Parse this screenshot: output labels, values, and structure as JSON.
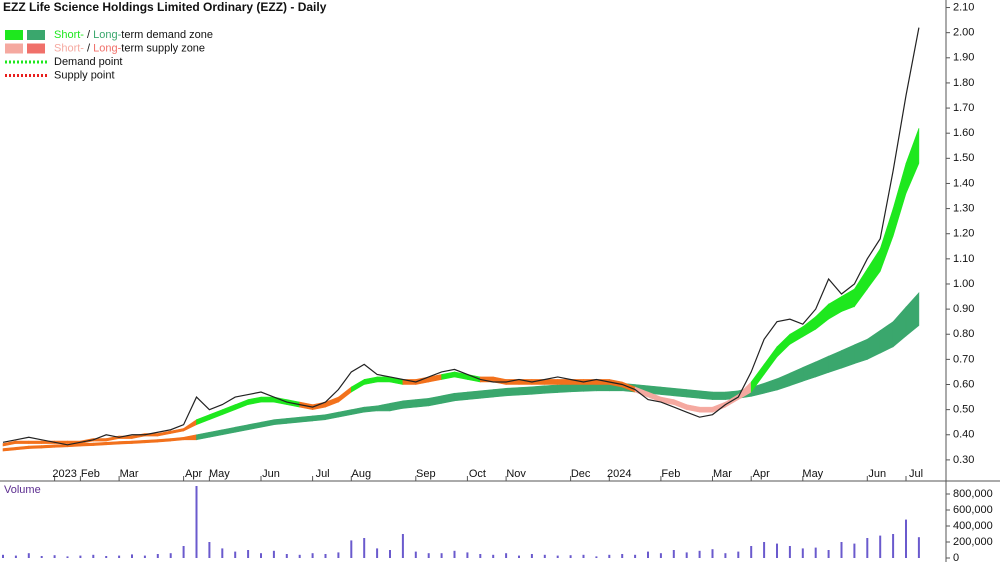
{
  "chart_data": [
    {
      "type": "line",
      "title": "EZZ Life Science Holdings Limited Ordinary (EZZ) - Daily",
      "categories": [
        null,
        null,
        null,
        null,
        "2023",
        null,
        "Feb",
        null,
        null,
        "Mar",
        null,
        null,
        null,
        null,
        "Apr",
        null,
        "May",
        null,
        null,
        null,
        "Jun",
        null,
        null,
        null,
        "Jul",
        null,
        null,
        "Aug",
        null,
        null,
        null,
        null,
        "Sep",
        null,
        null,
        null,
        "Oct",
        null,
        null,
        "Nov",
        null,
        null,
        null,
        null,
        "Dec",
        null,
        null,
        "2024",
        null,
        null,
        null,
        "Feb",
        null,
        null,
        null,
        "Mar",
        null,
        null,
        "Apr",
        null,
        null,
        null,
        "May",
        null,
        null,
        null,
        null,
        "Jun",
        null,
        null,
        "Jul",
        null
      ],
      "series": [
        {
          "color": "#222222",
          "values": [
            0.37,
            0.38,
            0.39,
            0.38,
            0.37,
            0.36,
            0.37,
            0.38,
            0.4,
            0.39,
            0.4,
            0.4,
            0.41,
            0.42,
            0.44,
            0.55,
            0.5,
            0.52,
            0.55,
            0.56,
            0.57,
            0.55,
            0.53,
            0.52,
            0.51,
            0.53,
            0.58,
            0.65,
            0.68,
            0.64,
            0.63,
            0.62,
            0.61,
            0.63,
            0.65,
            0.66,
            0.64,
            0.62,
            0.61,
            0.61,
            0.62,
            0.61,
            0.62,
            0.63,
            0.62,
            0.61,
            0.62,
            0.61,
            0.6,
            0.58,
            0.54,
            0.53,
            0.51,
            0.49,
            0.47,
            0.48,
            0.52,
            0.55,
            0.65,
            0.78,
            0.85,
            0.86,
            0.84,
            0.9,
            1.02,
            0.96,
            1.0,
            1.1,
            1.18,
            1.45,
            1.75,
            2.02
          ]
        }
      ],
      "bands": [
        {
          "lower": [
            0.335,
            0.34,
            0.345,
            0.347,
            0.35,
            0.352,
            0.355,
            0.357,
            0.36,
            0.363,
            0.365,
            0.368,
            0.371,
            0.375,
            0.38,
            0.38,
            0.39,
            0.4,
            0.41,
            0.42,
            0.43,
            0.44,
            0.445,
            0.45,
            0.455,
            0.46,
            0.47,
            0.48,
            0.49,
            0.495,
            0.495,
            0.505,
            0.51,
            0.515,
            0.525,
            0.535,
            0.54,
            0.545,
            0.55,
            0.555,
            0.558,
            0.561,
            0.565,
            0.568,
            0.571,
            0.573,
            0.575,
            0.575,
            0.575,
            0.57,
            0.565,
            0.56,
            0.555,
            0.55,
            0.545,
            0.54,
            0.54,
            0.545,
            0.553,
            0.565,
            0.578,
            0.595,
            0.613,
            0.63,
            0.648,
            0.665,
            0.683,
            0.7,
            0.725,
            0.75,
            0.793,
            0.835
          ],
          "upper": [
            0.345,
            0.35,
            0.355,
            0.357,
            0.36,
            0.362,
            0.365,
            0.367,
            0.37,
            0.373,
            0.375,
            0.378,
            0.381,
            0.385,
            0.39,
            0.4,
            0.41,
            0.42,
            0.43,
            0.44,
            0.45,
            0.46,
            0.465,
            0.47,
            0.475,
            0.48,
            0.49,
            0.5,
            0.51,
            0.515,
            0.525,
            0.535,
            0.54,
            0.545,
            0.555,
            0.565,
            0.57,
            0.575,
            0.58,
            0.585,
            0.588,
            0.591,
            0.595,
            0.598,
            0.601,
            0.603,
            0.605,
            0.605,
            0.605,
            0.6,
            0.595,
            0.59,
            0.585,
            0.58,
            0.575,
            0.57,
            0.57,
            0.575,
            0.588,
            0.605,
            0.623,
            0.645,
            0.668,
            0.69,
            0.713,
            0.735,
            0.758,
            0.78,
            0.815,
            0.85,
            0.908,
            0.965
          ],
          "colors": [
            "#f2711c",
            "#f2711c",
            "#f2711c",
            "#f2711c",
            "#f2711c",
            "#f2711c",
            "#f2711c",
            "#f2711c",
            "#f2711c",
            "#f2711c",
            "#f2711c",
            "#f2711c",
            "#f2711c",
            "#f2711c",
            "#f2711c",
            "#3aa76d",
            "#3aa76d",
            "#3aa76d",
            "#3aa76d",
            "#3aa76d",
            "#3aa76d",
            "#3aa76d",
            "#3aa76d",
            "#3aa76d",
            "#3aa76d",
            "#3aa76d",
            "#3aa76d",
            "#3aa76d",
            "#3aa76d",
            "#3aa76d",
            "#3aa76d",
            "#3aa76d",
            "#3aa76d",
            "#3aa76d",
            "#3aa76d",
            "#3aa76d",
            "#3aa76d",
            "#3aa76d",
            "#3aa76d",
            "#3aa76d",
            "#3aa76d",
            "#3aa76d",
            "#3aa76d",
            "#3aa76d",
            "#3aa76d",
            "#3aa76d",
            "#3aa76d",
            "#3aa76d",
            "#3aa76d",
            "#3aa76d",
            "#3aa76d",
            "#3aa76d",
            "#3aa76d",
            "#3aa76d",
            "#3aa76d",
            "#3aa76d",
            "#3aa76d",
            "#3aa76d",
            "#3aa76d",
            "#3aa76d",
            "#3aa76d",
            "#3aa76d",
            "#3aa76d",
            "#3aa76d",
            "#3aa76d",
            "#3aa76d",
            "#3aa76d",
            "#3aa76d",
            "#3aa76d",
            "#3aa76d",
            "#3aa76d",
            "#3aa76d"
          ]
        },
        {
          "lower": [
            0.355,
            0.365,
            0.365,
            0.365,
            0.365,
            0.365,
            0.365,
            0.375,
            0.375,
            0.385,
            0.385,
            0.395,
            0.395,
            0.405,
            0.415,
            0.44,
            0.46,
            0.48,
            0.5,
            0.52,
            0.53,
            0.53,
            0.52,
            0.51,
            0.5,
            0.51,
            0.53,
            0.57,
            0.6,
            0.61,
            0.61,
            0.6,
            0.6,
            0.61,
            0.62,
            0.63,
            0.62,
            0.61,
            0.61,
            0.6,
            0.6,
            0.6,
            0.6,
            0.6,
            0.6,
            0.6,
            0.6,
            0.6,
            0.59,
            0.57,
            0.55,
            0.53,
            0.52,
            0.5,
            0.49,
            0.49,
            0.51,
            0.54,
            0.57,
            0.64,
            0.71,
            0.76,
            0.79,
            0.82,
            0.86,
            0.89,
            0.91,
            0.98,
            1.05,
            1.19,
            1.36,
            1.48
          ],
          "upper": [
            0.365,
            0.375,
            0.375,
            0.375,
            0.375,
            0.375,
            0.375,
            0.385,
            0.385,
            0.395,
            0.395,
            0.405,
            0.405,
            0.415,
            0.425,
            0.46,
            0.48,
            0.5,
            0.52,
            0.54,
            0.55,
            0.55,
            0.54,
            0.53,
            0.52,
            0.53,
            0.55,
            0.59,
            0.62,
            0.63,
            0.63,
            0.62,
            0.62,
            0.63,
            0.64,
            0.65,
            0.64,
            0.63,
            0.63,
            0.62,
            0.62,
            0.62,
            0.62,
            0.62,
            0.62,
            0.62,
            0.62,
            0.62,
            0.61,
            0.59,
            0.57,
            0.55,
            0.54,
            0.52,
            0.51,
            0.51,
            0.53,
            0.56,
            0.61,
            0.68,
            0.75,
            0.8,
            0.83,
            0.87,
            0.92,
            0.95,
            0.98,
            1.06,
            1.14,
            1.3,
            1.48,
            1.62
          ],
          "colors": [
            "#f2711c",
            "#f2711c",
            "#f2711c",
            "#f2711c",
            "#f2711c",
            "#f2711c",
            "#f2711c",
            "#f2711c",
            "#f2711c",
            "#f2711c",
            "#f2711c",
            "#f2711c",
            "#f2711c",
            "#f2711c",
            "#f2711c",
            "#1ee81e",
            "#1ee81e",
            "#1ee81e",
            "#1ee81e",
            "#1ee81e",
            "#1ee81e",
            "#1ee81e",
            "#1ee81e",
            "#f2711c",
            "#f2711c",
            "#f2711c",
            "#f2711c",
            "#1ee81e",
            "#1ee81e",
            "#1ee81e",
            "#1ee81e",
            "#f2711c",
            "#f2711c",
            "#f2711c",
            "#1ee81e",
            "#1ee81e",
            "#1ee81e",
            "#f2711c",
            "#f2711c",
            "#f2711c",
            "#f2711c",
            "#f2711c",
            "#f2711c",
            "#f2711c",
            "#f2711c",
            "#f2711c",
            "#f2711c",
            "#f2711c",
            "#f2711c",
            "#f5a9a0",
            "#f5a9a0",
            "#f5a9a0",
            "#f5a9a0",
            "#f5a9a0",
            "#f5a9a0",
            "#f5a9a0",
            "#f5a9a0",
            "#f5a9a0",
            "#1ee81e",
            "#1ee81e",
            "#1ee81e",
            "#1ee81e",
            "#1ee81e",
            "#1ee81e",
            "#1ee81e",
            "#1ee81e",
            "#1ee81e",
            "#1ee81e",
            "#1ee81e",
            "#1ee81e",
            "#1ee81e",
            "#1ee81e"
          ]
        }
      ],
      "ylim": [
        0.22,
        2.13
      ],
      "yticks": [
        {
          "value": 0.3,
          "label": "0.30"
        },
        {
          "value": 0.4,
          "label": "0.40"
        },
        {
          "value": 0.5,
          "label": "0.50"
        },
        {
          "value": 0.6,
          "label": "0.60"
        },
        {
          "value": 0.7,
          "label": "0.70"
        },
        {
          "value": 0.8,
          "label": "0.80"
        },
        {
          "value": 0.9,
          "label": "0.90"
        },
        {
          "value": 1.0,
          "label": "1.00"
        },
        {
          "value": 1.1,
          "label": "1.10"
        },
        {
          "value": 1.2,
          "label": "1.20"
        },
        {
          "value": 1.3,
          "label": "1.30"
        },
        {
          "value": 1.4,
          "label": "1.40"
        },
        {
          "value": 1.5,
          "label": "1.50"
        },
        {
          "value": 1.6,
          "label": "1.60"
        },
        {
          "value": 1.7,
          "label": "1.70"
        },
        {
          "value": 1.8,
          "label": "1.80"
        },
        {
          "value": 1.9,
          "label": "1.90"
        },
        {
          "value": 2.0,
          "label": "2.00"
        },
        {
          "value": 2.1,
          "label": "2.10"
        }
      ],
      "grid": false,
      "legend": {
        "position": "top-left",
        "items": [
          {
            "swatches": [
              "#1ee81e",
              "#3aa76d"
            ],
            "style": "box",
            "parts": [
              {
                "text": "Short-",
                "color": "#1ee81e"
              },
              {
                "text": " / ",
                "color": "#111111"
              },
              {
                "text": "Long-",
                "color": "#3aa76d"
              },
              {
                "text": "term demand zone",
                "color": "#111111"
              }
            ]
          },
          {
            "swatches": [
              "#f5a9a0",
              "#f0706a"
            ],
            "style": "box",
            "parts": [
              {
                "text": "Short-",
                "color": "#f5a9a0"
              },
              {
                "text": " / ",
                "color": "#111111"
              },
              {
                "text": "Long-",
                "color": "#f0706a"
              },
              {
                "text": "term supply zone",
                "color": "#111111"
              }
            ]
          },
          {
            "swatches": [
              "#1ee81e"
            ],
            "style": "dotted",
            "parts": [
              {
                "text": "Demand point",
                "color": "#111111"
              }
            ]
          },
          {
            "swatches": [
              "#e8201e"
            ],
            "style": "dotted",
            "parts": [
              {
                "text": "Supply point",
                "color": "#111111"
              }
            ]
          }
        ]
      }
    },
    {
      "type": "bar",
      "title": "Volume",
      "color": "#6a5acd",
      "values": [
        40000,
        30000,
        60000,
        25000,
        35000,
        20000,
        30000,
        40000,
        25000,
        30000,
        45000,
        30000,
        50000,
        60000,
        150000,
        900000,
        200000,
        120000,
        80000,
        100000,
        60000,
        90000,
        50000,
        40000,
        60000,
        50000,
        70000,
        220000,
        250000,
        120000,
        100000,
        300000,
        80000,
        60000,
        60000,
        90000,
        70000,
        50000,
        40000,
        60000,
        30000,
        50000,
        40000,
        30000,
        35000,
        40000,
        20000,
        40000,
        50000,
        40000,
        80000,
        60000,
        100000,
        70000,
        90000,
        110000,
        60000,
        80000,
        150000,
        200000,
        180000,
        150000,
        120000,
        130000,
        100000,
        200000,
        180000,
        250000,
        280000,
        300000,
        480000,
        260000
      ],
      "ylim": [
        0,
        925000
      ],
      "yticks": [
        0,
        {
          "value": 200000,
          "label": "200,000"
        },
        {
          "value": 400000,
          "label": "400,000"
        },
        {
          "value": 600000,
          "label": "600,000"
        },
        {
          "value": 800000,
          "label": "800,000"
        }
      ]
    }
  ]
}
